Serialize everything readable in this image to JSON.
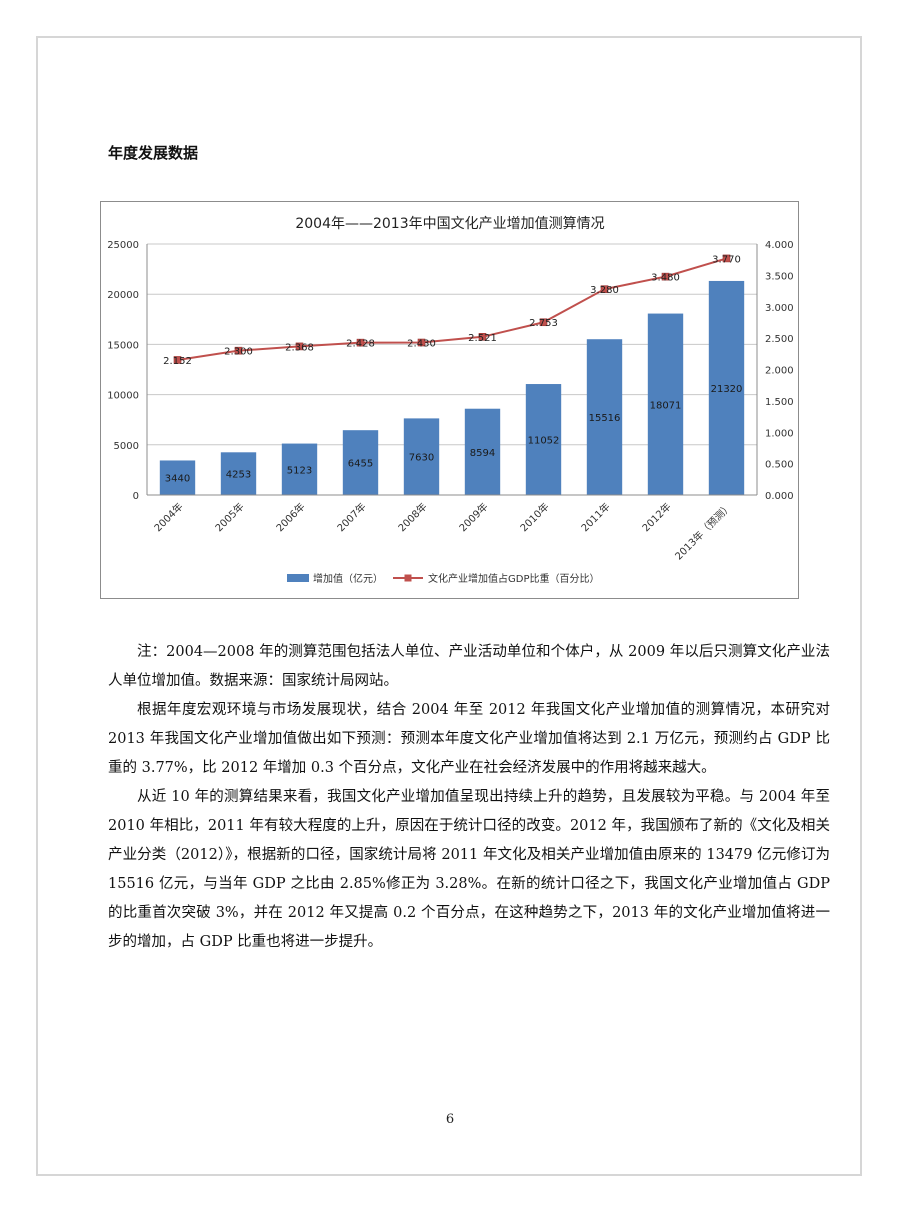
{
  "heading": "年度发展数据",
  "paragraphs": [
    "注：2004—2008 年的测算范围包括法人单位、产业活动单位和个体户，从 2009 年以后只测算文化产业法人单位增加值。数据来源：国家统计局网站。",
    "根据年度宏观环境与市场发展现状，结合 2004 年至 2012 年我国文化产业增加值的测算情况，本研究对 2013 年我国文化产业增加值做出如下预测：预测本年度文化产业增加值将达到 2.1 万亿元，预测约占 GDP 比重的 3.77%，比 2012 年增加 0.3 个百分点，文化产业在社会经济发展中的作用将越来越大。",
    "从近 10 年的测算结果来看，我国文化产业增加值呈现出持续上升的趋势，且发展较为平稳。与 2004 年至 2010 年相比，2011 年有较大程度的上升，原因在于统计口径的改变。2012 年，我国颁布了新的《文化及相关产业分类（2012）》，根据新的口径，国家统计局将 2011 年文化及相关产业增加值由原来的 13479 亿元修订为 15516 亿元，与当年 GDP 之比由 2.85%修正为 3.28%。在新的统计口径之下，我国文化产业增加值占 GDP 的比重首次突破 3%，并在 2012 年又提高 0.2 个百分点，在这种趋势之下，2013 年的文化产业增加值将进一步的增加，占 GDP 比重也将进一步提升。"
  ],
  "page_number": "6",
  "chart_data": {
    "type": "bar",
    "title": "2004年——2013年中国文化产业增加值测算情况",
    "categories": [
      "2004年",
      "2005年",
      "2006年",
      "2007年",
      "2008年",
      "2009年",
      "2010年",
      "2011年",
      "2012年",
      "2013年（预测）"
    ],
    "series": [
      {
        "name": "增加值（亿元）",
        "type": "bar",
        "axis": "left",
        "color": "#4f81bd",
        "values": [
          3440,
          4253,
          5123,
          6455,
          7630,
          8594,
          11052,
          15516,
          18071,
          21320
        ],
        "labels": [
          "3440",
          "4253",
          "5123",
          "6455",
          "7630",
          "8594",
          "11052",
          "15516",
          "18071",
          "21320"
        ]
      },
      {
        "name": "文化产业增加值占GDP比重（百分比）",
        "type": "line",
        "axis": "right",
        "color": "#c0504d",
        "values": [
          2.152,
          2.3,
          2.368,
          2.428,
          2.43,
          2.521,
          2.753,
          3.28,
          3.48,
          3.77
        ],
        "labels": [
          "2.152",
          "2.300",
          "2.368",
          "2.428",
          "2.430",
          "2.521",
          "2.753",
          "3.280",
          "3.480",
          "3.770"
        ]
      }
    ],
    "ylim": [
      0,
      25000
    ],
    "yticks": [
      "0",
      "5000",
      "10000",
      "15000",
      "20000",
      "25000"
    ],
    "y2lim": [
      0,
      4
    ],
    "y2ticks": [
      "0.000",
      "0.500",
      "1.000",
      "1.500",
      "2.000",
      "2.500",
      "3.000",
      "3.500",
      "4.000"
    ],
    "grid": true,
    "legend_position": "bottom"
  }
}
